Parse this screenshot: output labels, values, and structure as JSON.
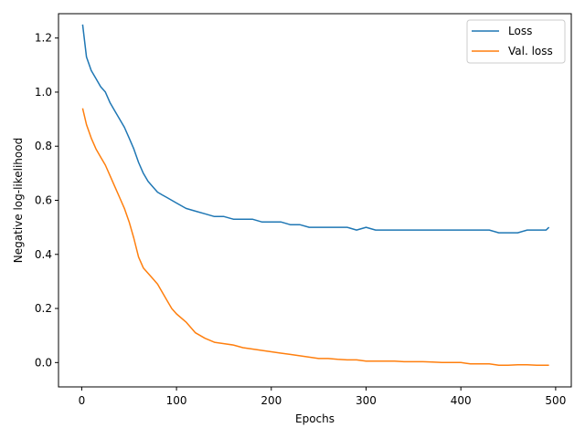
{
  "chart_data": {
    "type": "line",
    "title": "",
    "xlabel": "Epochs",
    "ylabel": "Negative log-likelihood",
    "xlim": [
      -24.5,
      516.5
    ],
    "ylim": [
      -0.09,
      1.29
    ],
    "xticks": [
      0,
      100,
      200,
      300,
      400,
      500
    ],
    "yticks": [
      0.0,
      0.2,
      0.4,
      0.6,
      0.8,
      1.0,
      1.2
    ],
    "xtick_labels": [
      "0",
      "100",
      "200",
      "300",
      "400",
      "500"
    ],
    "ytick_labels": [
      "0.0",
      "0.2",
      "0.4",
      "0.6",
      "0.8",
      "1.0",
      "1.2"
    ],
    "grid": false,
    "legend_position": "top-right",
    "series": [
      {
        "name": "Loss",
        "color": "#1f77b4",
        "x": [
          1,
          5,
          10,
          15,
          20,
          25,
          30,
          35,
          40,
          45,
          50,
          55,
          60,
          65,
          70,
          75,
          80,
          85,
          90,
          95,
          100,
          110,
          120,
          130,
          140,
          150,
          160,
          170,
          180,
          190,
          200,
          210,
          220,
          230,
          240,
          250,
          260,
          270,
          280,
          290,
          300,
          310,
          320,
          330,
          340,
          350,
          360,
          370,
          380,
          390,
          400,
          410,
          420,
          430,
          440,
          450,
          460,
          470,
          480,
          490,
          493
        ],
        "y": [
          1.25,
          1.13,
          1.08,
          1.05,
          1.02,
          1.0,
          0.96,
          0.93,
          0.9,
          0.87,
          0.83,
          0.79,
          0.74,
          0.7,
          0.67,
          0.65,
          0.63,
          0.62,
          0.61,
          0.6,
          0.59,
          0.57,
          0.56,
          0.55,
          0.54,
          0.54,
          0.53,
          0.53,
          0.53,
          0.52,
          0.52,
          0.52,
          0.51,
          0.51,
          0.5,
          0.5,
          0.5,
          0.5,
          0.5,
          0.49,
          0.5,
          0.49,
          0.49,
          0.49,
          0.49,
          0.49,
          0.49,
          0.49,
          0.49,
          0.49,
          0.49,
          0.49,
          0.49,
          0.49,
          0.48,
          0.48,
          0.48,
          0.49,
          0.49,
          0.49,
          0.5
        ]
      },
      {
        "name": "Val. loss",
        "color": "#ff7f0e",
        "x": [
          1,
          5,
          10,
          15,
          20,
          25,
          30,
          35,
          40,
          45,
          50,
          55,
          60,
          65,
          70,
          75,
          80,
          85,
          90,
          95,
          100,
          110,
          120,
          130,
          140,
          150,
          160,
          170,
          180,
          190,
          200,
          210,
          220,
          230,
          240,
          250,
          260,
          270,
          280,
          290,
          300,
          310,
          320,
          330,
          340,
          350,
          360,
          370,
          380,
          390,
          400,
          410,
          420,
          430,
          440,
          450,
          460,
          470,
          480,
          490,
          493
        ],
        "y": [
          0.94,
          0.88,
          0.83,
          0.79,
          0.76,
          0.73,
          0.69,
          0.65,
          0.61,
          0.57,
          0.52,
          0.46,
          0.39,
          0.35,
          0.33,
          0.31,
          0.29,
          0.26,
          0.23,
          0.2,
          0.18,
          0.15,
          0.11,
          0.09,
          0.075,
          0.07,
          0.065,
          0.055,
          0.05,
          0.045,
          0.04,
          0.035,
          0.03,
          0.025,
          0.02,
          0.015,
          0.015,
          0.012,
          0.01,
          0.01,
          0.005,
          0.005,
          0.005,
          0.005,
          0.003,
          0.003,
          0.003,
          0.002,
          0.0,
          0.0,
          0.0,
          -0.005,
          -0.005,
          -0.005,
          -0.01,
          -0.01,
          -0.008,
          -0.008,
          -0.01,
          -0.01,
          -0.01
        ]
      }
    ]
  }
}
